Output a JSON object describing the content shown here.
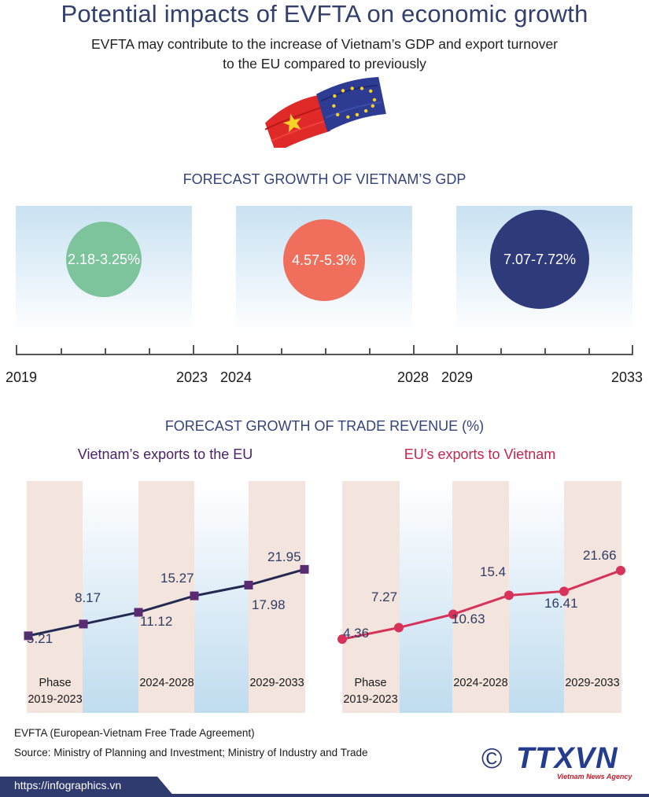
{
  "header": {
    "title": "Potential impacts of  EVFTA on economic growth",
    "subtitle_line1": "EVFTA may contribute to the increase of Vietnam’s GDP and export turnover",
    "subtitle_line2": "to the EU compared to previously"
  },
  "colors": {
    "title": "#33406e",
    "green_circle": "#7dc49d",
    "orange_circle": "#ef6f5c",
    "navy_circle": "#2f3a7a",
    "vn_line": "#232a52",
    "vn_marker": "#5a2a72",
    "eu_line": "#d6325a",
    "vn_sub": "#4a2268",
    "eu_sub": "#c7254e"
  },
  "gdp": {
    "title": "FORECAST GROWTH OF VIETNAM’S GDP",
    "periods": [
      {
        "value": "2.18-3.25%",
        "start": "2019",
        "end": "2023"
      },
      {
        "value": "4.57-5.3%",
        "start": "2024",
        "end": "2028"
      },
      {
        "value": "7.07-7.72%",
        "start": "2029",
        "end": "2033"
      }
    ]
  },
  "trade": {
    "title": "FORECAST GROWTH OF TRADE REVENUE (%)",
    "phase_labels": [
      "Phase",
      "2019-2023",
      "2024-2028",
      "2029-2033"
    ]
  },
  "chart_data": [
    {
      "type": "line",
      "title": "Vietnam’s exports to the EU",
      "x": [
        1,
        2,
        3,
        4,
        5,
        6
      ],
      "values": [
        5.21,
        8.17,
        11.12,
        15.27,
        17.98,
        21.95
      ],
      "labels": [
        "5.21",
        "8.17",
        "11.12",
        "15.27",
        "17.98",
        "21.95"
      ],
      "phases": [
        "2019-2023",
        "2024-2028",
        "2029-2033"
      ]
    },
    {
      "type": "line",
      "title": "EU’s exports to Vietnam",
      "x": [
        1,
        2,
        3,
        4,
        5,
        6
      ],
      "values": [
        4.36,
        7.27,
        10.63,
        15.4,
        16.41,
        21.66
      ],
      "labels": [
        "4.36",
        "7.27",
        "10.63",
        "15.4",
        "16.41",
        "21.66"
      ],
      "phases": [
        "2019-2023",
        "2024-2028",
        "2029-2033"
      ]
    }
  ],
  "footer": {
    "note": "EVFTA (European-Vietnam Free Trade Agreement)",
    "source": "Source:  Ministry of Planning and Investment; Ministry of Industry and Trade",
    "url": "https://infographics.vn",
    "copyright": "©",
    "logo": "TTXVN",
    "logo_tag": "Vietnam News Agency"
  }
}
